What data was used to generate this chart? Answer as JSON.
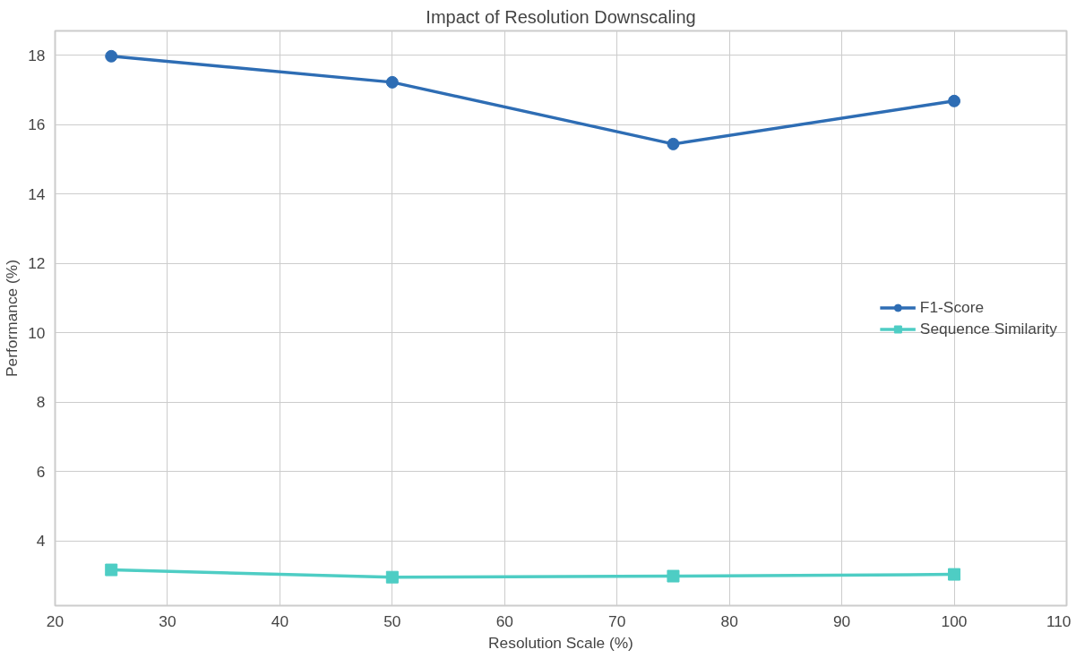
{
  "chart_data": {
    "type": "line",
    "title": "Impact of Resolution Downscaling",
    "xlabel": "Resolution Scale (%)",
    "ylabel": "Performance (%)",
    "x": [
      25,
      50,
      75,
      100
    ],
    "series": [
      {
        "name": "F1-Score",
        "color": "#2e6db4",
        "marker": "circle",
        "values": [
          17.97,
          17.22,
          15.44,
          16.68
        ]
      },
      {
        "name": "Sequence Similarity",
        "color": "#4ecdc4",
        "marker": "square",
        "values": [
          3.17,
          2.96,
          2.99,
          3.04
        ]
      }
    ],
    "xlim": [
      20,
      110
    ],
    "xticks": [
      20,
      30,
      40,
      50,
      60,
      70,
      80,
      90,
      100,
      110
    ],
    "ylim": [
      2.14,
      18.7
    ],
    "yticks": [
      4,
      6,
      8,
      10,
      12,
      14,
      16,
      18
    ],
    "grid": true,
    "legend": "right",
    "line_style": "solid"
  }
}
